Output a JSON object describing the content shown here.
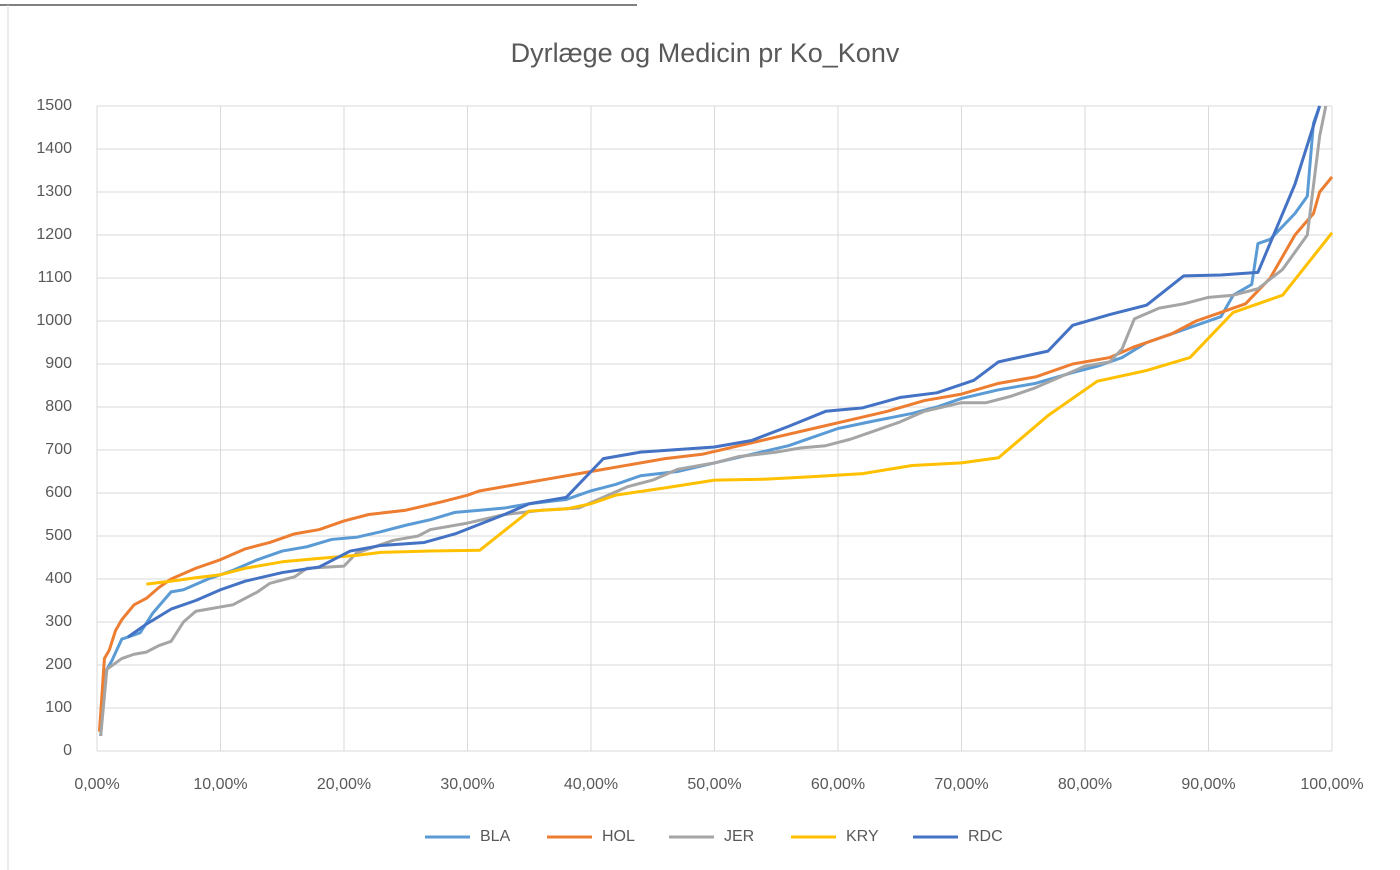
{
  "chart_data": {
    "type": "line",
    "title": "Dyrlæge og Medicin pr Ko_Konv",
    "xlim": [
      0,
      1
    ],
    "ylim": [
      0,
      1500
    ],
    "xticks": [
      {
        "value": 0,
        "label": "0,00%"
      },
      {
        "value": 0.1,
        "label": "10,00%"
      },
      {
        "value": 0.2,
        "label": "20,00%"
      },
      {
        "value": 0.3,
        "label": "30,00%"
      },
      {
        "value": 0.4,
        "label": "40,00%"
      },
      {
        "value": 0.5,
        "label": "50,00%"
      },
      {
        "value": 0.6,
        "label": "60,00%"
      },
      {
        "value": 0.7,
        "label": "70,00%"
      },
      {
        "value": 0.8,
        "label": "80,00%"
      },
      {
        "value": 0.9,
        "label": "90,00%"
      },
      {
        "value": 1,
        "label": "100,00%"
      }
    ],
    "yticks": [
      0,
      100,
      200,
      300,
      400,
      500,
      600,
      700,
      800,
      900,
      1000,
      1100,
      1200,
      1300,
      1400,
      1500
    ],
    "grid": true,
    "legend": "bottom",
    "series": [
      {
        "name": "BLA",
        "color": "#5b9bd5",
        "x": [
          0.003,
          0.006,
          0.012,
          0.02,
          0.03,
          0.035,
          0.045,
          0.06,
          0.07,
          0.09,
          0.11,
          0.13,
          0.15,
          0.17,
          0.19,
          0.21,
          0.23,
          0.25,
          0.27,
          0.29,
          0.31,
          0.33,
          0.35,
          0.38,
          0.4,
          0.42,
          0.44,
          0.47,
          0.5,
          0.53,
          0.56,
          0.58,
          0.6,
          0.63,
          0.66,
          0.68,
          0.7,
          0.73,
          0.76,
          0.79,
          0.81,
          0.83,
          0.85,
          0.87,
          0.89,
          0.91,
          0.92,
          0.935,
          0.94,
          0.95,
          0.97,
          0.98,
          0.985,
          0.99
        ],
        "values": [
          35,
          180,
          210,
          260,
          270,
          275,
          320,
          370,
          375,
          400,
          420,
          445,
          465,
          475,
          492,
          497,
          510,
          525,
          538,
          555,
          560,
          565,
          575,
          585,
          605,
          620,
          640,
          650,
          670,
          690,
          710,
          730,
          750,
          768,
          785,
          800,
          820,
          840,
          855,
          880,
          895,
          915,
          950,
          970,
          990,
          1010,
          1060,
          1085,
          1180,
          1190,
          1250,
          1290,
          1460,
          1500
        ]
      },
      {
        "name": "HOL",
        "color": "#ed7d31",
        "x": [
          0.002,
          0.006,
          0.01,
          0.015,
          0.02,
          0.03,
          0.04,
          0.05,
          0.06,
          0.08,
          0.1,
          0.12,
          0.14,
          0.16,
          0.18,
          0.2,
          0.22,
          0.25,
          0.28,
          0.3,
          0.31,
          0.34,
          0.37,
          0.4,
          0.43,
          0.46,
          0.49,
          0.52,
          0.55,
          0.58,
          0.61,
          0.64,
          0.67,
          0.7,
          0.73,
          0.76,
          0.79,
          0.82,
          0.84,
          0.87,
          0.89,
          0.91,
          0.93,
          0.95,
          0.97,
          0.985,
          0.99,
          1.0
        ],
        "values": [
          45,
          215,
          235,
          280,
          305,
          340,
          355,
          380,
          400,
          425,
          445,
          470,
          485,
          505,
          515,
          535,
          550,
          560,
          580,
          595,
          605,
          620,
          635,
          650,
          665,
          680,
          690,
          710,
          730,
          750,
          770,
          790,
          815,
          830,
          855,
          870,
          900,
          915,
          940,
          970,
          1000,
          1020,
          1040,
          1100,
          1200,
          1250,
          1300,
          1335
        ]
      },
      {
        "name": "JER",
        "color": "#a5a5a5",
        "x": [
          0.003,
          0.008,
          0.02,
          0.03,
          0.04,
          0.05,
          0.06,
          0.07,
          0.08,
          0.09,
          0.1,
          0.11,
          0.12,
          0.13,
          0.14,
          0.16,
          0.17,
          0.2,
          0.21,
          0.24,
          0.26,
          0.27,
          0.3,
          0.33,
          0.36,
          0.39,
          0.41,
          0.43,
          0.45,
          0.47,
          0.5,
          0.52,
          0.55,
          0.57,
          0.59,
          0.61,
          0.63,
          0.65,
          0.67,
          0.7,
          0.72,
          0.74,
          0.76,
          0.78,
          0.8,
          0.82,
          0.83,
          0.84,
          0.86,
          0.88,
          0.9,
          0.92,
          0.94,
          0.96,
          0.98,
          0.99,
          0.995
        ],
        "values": [
          35,
          190,
          215,
          225,
          230,
          245,
          255,
          300,
          325,
          330,
          335,
          340,
          355,
          370,
          390,
          405,
          425,
          430,
          460,
          490,
          500,
          515,
          530,
          550,
          560,
          565,
          590,
          615,
          630,
          655,
          670,
          685,
          695,
          705,
          710,
          725,
          745,
          765,
          790,
          810,
          810,
          825,
          845,
          870,
          895,
          905,
          935,
          1005,
          1030,
          1040,
          1055,
          1060,
          1075,
          1120,
          1200,
          1430,
          1500
        ]
      },
      {
        "name": "KRY",
        "color": "#ffc000",
        "x": [
          0.04,
          0.06,
          0.08,
          0.1,
          0.12,
          0.15,
          0.18,
          0.21,
          0.23,
          0.27,
          0.31,
          0.35,
          0.38,
          0.4,
          0.42,
          0.46,
          0.5,
          0.54,
          0.58,
          0.62,
          0.66,
          0.7,
          0.73,
          0.77,
          0.81,
          0.85,
          0.885,
          0.92,
          0.96,
          1.0
        ],
        "values": [
          388,
          395,
          403,
          410,
          425,
          440,
          448,
          455,
          462,
          465,
          467,
          558,
          563,
          575,
          595,
          612,
          630,
          632,
          638,
          645,
          664,
          670,
          682,
          780,
          860,
          885,
          915,
          1020,
          1060,
          1205
        ]
      },
      {
        "name": "RDC",
        "color": "#4472c4",
        "x": [
          0.025,
          0.04,
          0.06,
          0.08,
          0.1,
          0.12,
          0.15,
          0.18,
          0.205,
          0.23,
          0.265,
          0.29,
          0.33,
          0.35,
          0.38,
          0.41,
          0.44,
          0.5,
          0.53,
          0.56,
          0.59,
          0.62,
          0.65,
          0.68,
          0.71,
          0.73,
          0.77,
          0.79,
          0.82,
          0.85,
          0.88,
          0.91,
          0.94,
          0.97,
          0.99
        ],
        "values": [
          265,
          295,
          330,
          350,
          375,
          395,
          415,
          428,
          465,
          478,
          485,
          505,
          550,
          575,
          590,
          680,
          695,
          707,
          722,
          755,
          790,
          798,
          822,
          833,
          862,
          905,
          930,
          990,
          1015,
          1037,
          1105,
          1107,
          1113,
          1318,
          1500
        ]
      }
    ]
  }
}
